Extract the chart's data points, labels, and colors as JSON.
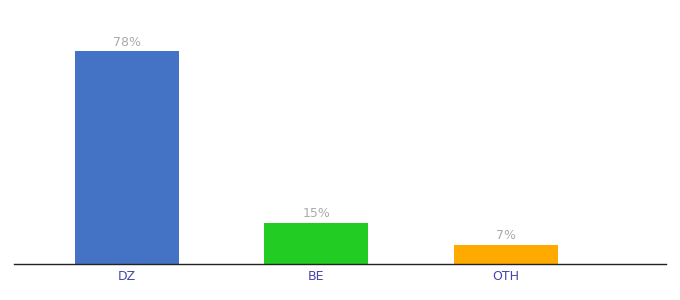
{
  "categories": [
    "DZ",
    "BE",
    "OTH"
  ],
  "values": [
    78,
    15,
    7
  ],
  "bar_colors": [
    "#4472c4",
    "#22cc22",
    "#ffaa00"
  ],
  "labels": [
    "78%",
    "15%",
    "7%"
  ],
  "ylim": [
    0,
    88
  ],
  "background_color": "#ffffff",
  "label_color": "#aaaaaa",
  "bar_width": 0.55,
  "x_positions": [
    1,
    2,
    3
  ],
  "xlim": [
    0.4,
    3.85
  ],
  "label_fontsize": 9,
  "tick_fontsize": 9
}
